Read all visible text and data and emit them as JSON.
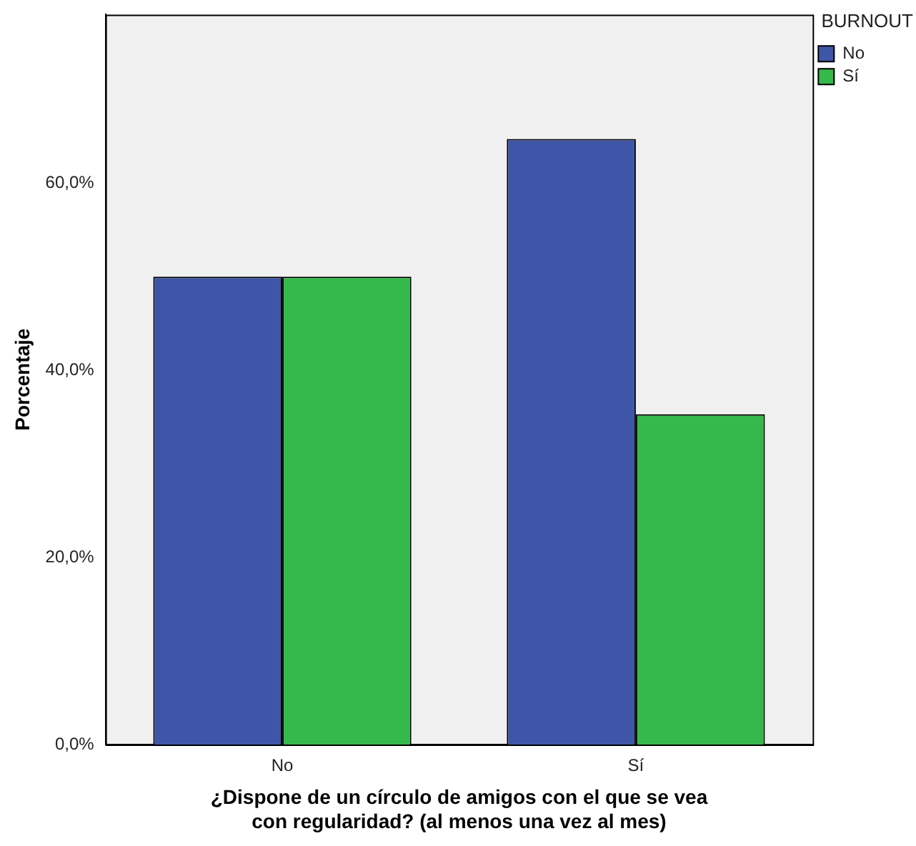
{
  "chart_data": {
    "type": "bar",
    "xlabel": "¿Dispone de un círculo de amigos con el que se vea con regularidad? (al menos una vez al mes)",
    "ylabel": "Porcentaje",
    "legend_title": "BURNOUT",
    "categories": [
      "No",
      "Sí"
    ],
    "series": [
      {
        "name": "No",
        "color": "#3f56a8",
        "values": [
          50,
          64.7
        ]
      },
      {
        "name": "Sí",
        "color": "#35b94a",
        "values": [
          50,
          35.3
        ]
      }
    ],
    "ylim": [
      0,
      78
    ],
    "yticks": [
      {
        "value": 0,
        "label": "0,0%"
      },
      {
        "value": 20,
        "label": "20,0%"
      },
      {
        "value": 40,
        "label": "40,0%"
      },
      {
        "value": 60,
        "label": "60,0%"
      }
    ],
    "grid": false,
    "legend": "top right"
  }
}
